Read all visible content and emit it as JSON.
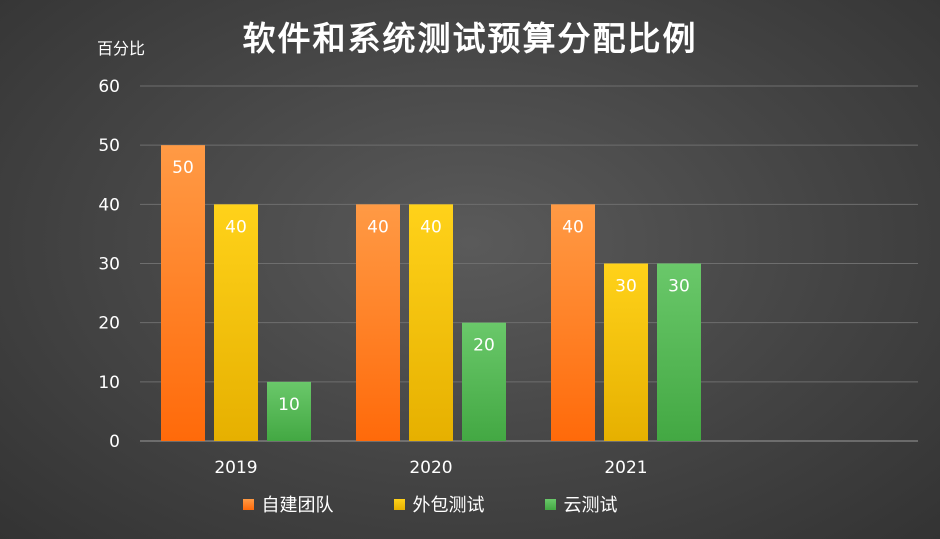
{
  "chart_data": {
    "type": "bar",
    "title": "软件和系统测试预算分配比例",
    "ylabel": "百分比",
    "xlabel": "",
    "categories": [
      "2019",
      "2020",
      "2021"
    ],
    "ylim": [
      0,
      60
    ],
    "yticks": [
      0,
      10,
      20,
      30,
      40,
      50,
      60
    ],
    "grid": true,
    "legend_position": "bottom",
    "series": [
      {
        "name": "自建团队",
        "values": [
          50,
          40,
          40
        ],
        "color": "#ff6a0a",
        "color_light": "#ff9a45",
        "label_color": "#ffffff"
      },
      {
        "name": "外包测试",
        "values": [
          40,
          40,
          30
        ],
        "color": "#e6b000",
        "color_light": "#ffd21a",
        "label_color": "#ffffff"
      },
      {
        "name": "云测试",
        "values": [
          10,
          20,
          30
        ],
        "color": "#43a843",
        "color_light": "#6ac86a",
        "label_color": "#ffffff"
      }
    ]
  }
}
